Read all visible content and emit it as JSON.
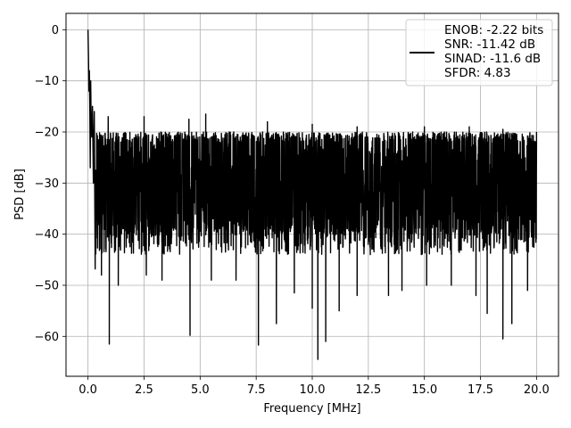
{
  "chart_data": {
    "type": "line",
    "title": "",
    "xlabel": "Frequency [MHz]",
    "ylabel": "PSD [dB]",
    "xlim": [
      -0.98,
      20.98
    ],
    "ylim": [
      -67.8,
      3.2
    ],
    "grid": true,
    "x_ticks": [
      0.0,
      2.5,
      5.0,
      7.5,
      10.0,
      12.5,
      15.0,
      17.5,
      20.0
    ],
    "x_tick_labels": [
      "0.0",
      "2.5",
      "5.0",
      "7.5",
      "10.0",
      "12.5",
      "15.0",
      "17.5",
      "20.0"
    ],
    "y_ticks": [
      0,
      -10,
      -20,
      -30,
      -40,
      -50,
      -60
    ],
    "y_tick_labels": [
      "0",
      "−10",
      "−20",
      "−30",
      "−40",
      "−50",
      "−60"
    ],
    "legend": {
      "placement": "top-right",
      "lines": [
        "ENOB: -2.22 bits",
        "SNR: -11.42 dB",
        "SINAD: -11.6 dB",
        "SFDR: 4.83"
      ]
    },
    "series": [
      {
        "color": "#000000",
        "x_range": [
          0,
          20
        ],
        "start_points": [
          [
            0.0,
            0.0
          ],
          [
            0.02,
            -5.0
          ],
          [
            0.04,
            -12.0
          ],
          [
            0.06,
            -8.0
          ],
          [
            0.08,
            -14.0
          ],
          [
            0.1,
            -27.0
          ],
          [
            0.12,
            -10.0
          ],
          [
            0.14,
            -18.0
          ],
          [
            0.17,
            -21.0
          ],
          [
            0.2,
            -15.0
          ],
          [
            0.24,
            -30.0
          ],
          [
            0.28,
            -16.0
          ],
          [
            0.32,
            -46.8
          ]
        ],
        "noise_floor": {
          "upper": -20,
          "lower": -40
        },
        "peak_points": [
          [
            0.9,
            -17.0
          ],
          [
            2.5,
            -17.0
          ],
          [
            4.5,
            -17.5
          ],
          [
            5.25,
            -16.5
          ],
          [
            8.0,
            -18.0
          ],
          [
            10.0,
            -18.5
          ],
          [
            12.0,
            -19.0
          ],
          [
            15.0,
            -19.0
          ],
          [
            17.0,
            -19.0
          ],
          [
            18.5,
            -19.5
          ],
          [
            20.0,
            -20.0
          ]
        ],
        "dip_points": [
          [
            0.6,
            -48.0
          ],
          [
            0.95,
            -61.5
          ],
          [
            1.35,
            -50.0
          ],
          [
            2.6,
            -48.0
          ],
          [
            3.3,
            -49.0
          ],
          [
            4.55,
            -59.8
          ],
          [
            5.5,
            -49.0
          ],
          [
            6.6,
            -49.0
          ],
          [
            7.6,
            -61.7
          ],
          [
            8.4,
            -57.5
          ],
          [
            9.2,
            -51.5
          ],
          [
            10.0,
            -54.5
          ],
          [
            10.25,
            -64.5
          ],
          [
            10.6,
            -61.0
          ],
          [
            11.2,
            -55.0
          ],
          [
            12.0,
            -52.0
          ],
          [
            13.4,
            -52.0
          ],
          [
            14.0,
            -51.0
          ],
          [
            15.1,
            -50.0
          ],
          [
            16.2,
            -50.0
          ],
          [
            17.3,
            -52.0
          ],
          [
            17.8,
            -55.5
          ],
          [
            18.5,
            -60.5
          ],
          [
            18.9,
            -57.5
          ],
          [
            19.6,
            -51.0
          ]
        ]
      }
    ]
  }
}
